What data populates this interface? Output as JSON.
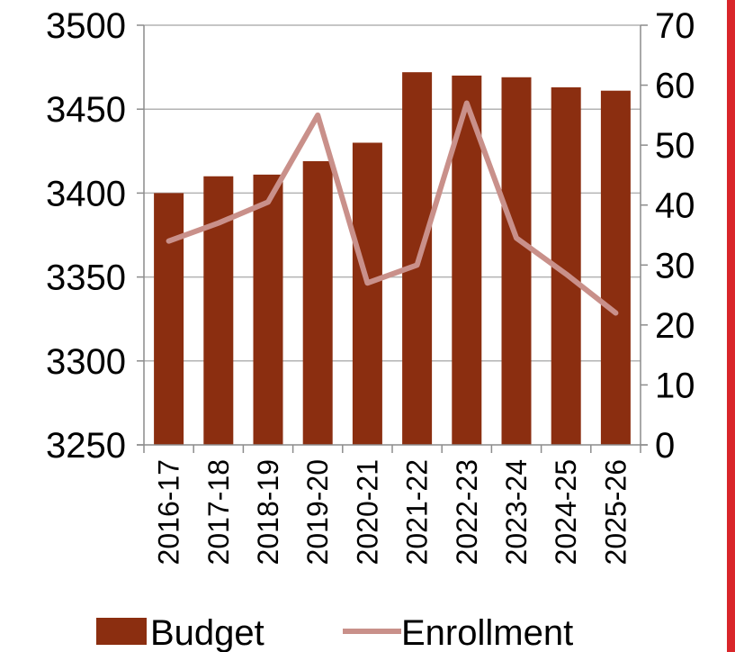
{
  "chart_data": {
    "type": "bar",
    "categories": [
      "2016-17",
      "2017-18",
      "2018-19",
      "2019-20",
      "2020-21",
      "2021-22",
      "2022-23",
      "2023-24",
      "2024-25",
      "2025-26"
    ],
    "series": [
      {
        "name": "Budget",
        "type": "bar",
        "axis": "left",
        "color": "#8b2e10",
        "values": [
          3400,
          3410,
          3411,
          3419,
          3430,
          3472,
          3470,
          3469,
          3463,
          3461
        ]
      },
      {
        "name": "Enrollment",
        "type": "line",
        "axis": "right",
        "color": "#c9908a",
        "values": [
          34,
          37,
          40.5,
          55,
          27,
          30,
          57,
          34.5,
          28.5,
          22
        ]
      }
    ],
    "y_left": {
      "ticks": [
        3250,
        3300,
        3350,
        3400,
        3450,
        3500
      ],
      "lim": [
        3250,
        3500
      ]
    },
    "y_right": {
      "ticks": [
        0,
        10,
        20,
        30,
        40,
        50,
        60,
        70
      ],
      "lim": [
        0,
        70
      ]
    },
    "grid": "horizontal",
    "legend_position": "bottom",
    "title": "",
    "xlabel": "",
    "ylabel": "",
    "accent_bar_color": "#d9262a"
  }
}
